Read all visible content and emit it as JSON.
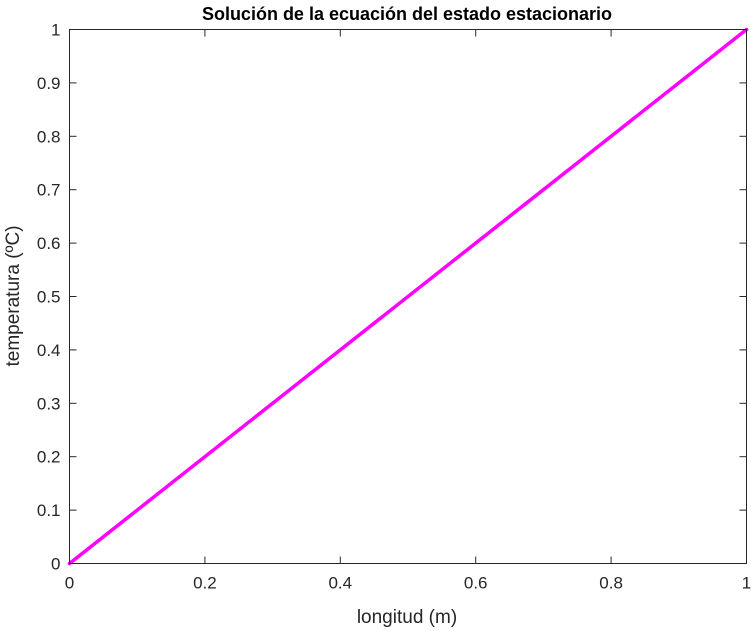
{
  "chart_data": {
    "type": "line",
    "title": "Solución de la ecuación del estado estacionario",
    "xlabel": "longitud (m)",
    "ylabel": "temperatura (ºC)",
    "xlim": [
      0,
      1
    ],
    "ylim": [
      0,
      1
    ],
    "xticks": [
      "0",
      "0.2",
      "0.4",
      "0.6",
      "0.8",
      "1"
    ],
    "yticks": [
      "0",
      "0.1",
      "0.2",
      "0.3",
      "0.4",
      "0.5",
      "0.6",
      "0.7",
      "0.8",
      "0.9",
      "1"
    ],
    "grid": false,
    "series": [
      {
        "x": [
          0,
          1
        ],
        "y": [
          0,
          1
        ],
        "color": "#ff00ff"
      }
    ]
  }
}
